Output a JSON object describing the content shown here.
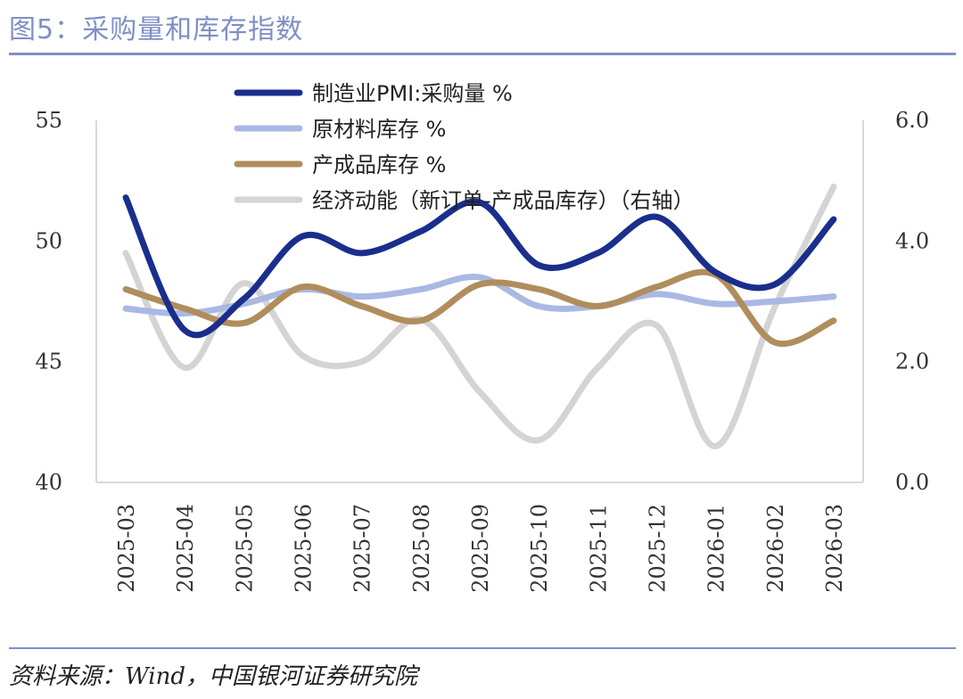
{
  "title": "图5：采购量和库存指数",
  "source": "资料来源：Wind，中国银河证券研究院",
  "chart_data": {
    "type": "line",
    "title": "采购量和库存指数",
    "categories": [
      "2025-03",
      "2025-04",
      "2025-05",
      "2025-06",
      "2025-07",
      "2025-08",
      "2025-09",
      "2025-10",
      "2025-11",
      "2025-12",
      "2026-01",
      "2026-02",
      "2026-03"
    ],
    "y_left": {
      "min": 40,
      "max": 55,
      "ticks": [
        "40",
        "45",
        "50",
        "55"
      ]
    },
    "y_right": {
      "min": 0,
      "max": 6,
      "ticks": [
        "0.0",
        "2.0",
        "4.0",
        "6.0"
      ]
    },
    "legend_position": "top-left",
    "series": [
      {
        "name": "制造业PMI:采购量 %",
        "axis": "left",
        "color": "#1a2e8c",
        "values": [
          51.8,
          46.3,
          47.6,
          50.2,
          49.5,
          50.4,
          51.6,
          49.0,
          49.5,
          51.0,
          48.7,
          48.2,
          50.9
        ]
      },
      {
        "name": "原材料库存 %",
        "axis": "left",
        "color": "#a9b9e3",
        "values": [
          47.2,
          47.0,
          47.4,
          48.0,
          47.7,
          48.0,
          48.5,
          47.3,
          47.3,
          47.8,
          47.4,
          47.5,
          47.7
        ]
      },
      {
        "name": "产成品库存 %",
        "axis": "left",
        "color": "#b08d5c",
        "values": [
          48.0,
          47.2,
          46.6,
          48.1,
          47.3,
          46.7,
          48.2,
          48.0,
          47.3,
          48.1,
          48.6,
          45.8,
          46.7
        ]
      },
      {
        "name": "经济动能（新订单-产成品库存）（右轴）",
        "axis": "right",
        "color": "#d4d4d4",
        "values": [
          3.8,
          1.9,
          3.3,
          2.1,
          2.0,
          2.7,
          1.5,
          0.7,
          1.9,
          2.6,
          0.6,
          2.9,
          4.9
        ]
      }
    ]
  }
}
